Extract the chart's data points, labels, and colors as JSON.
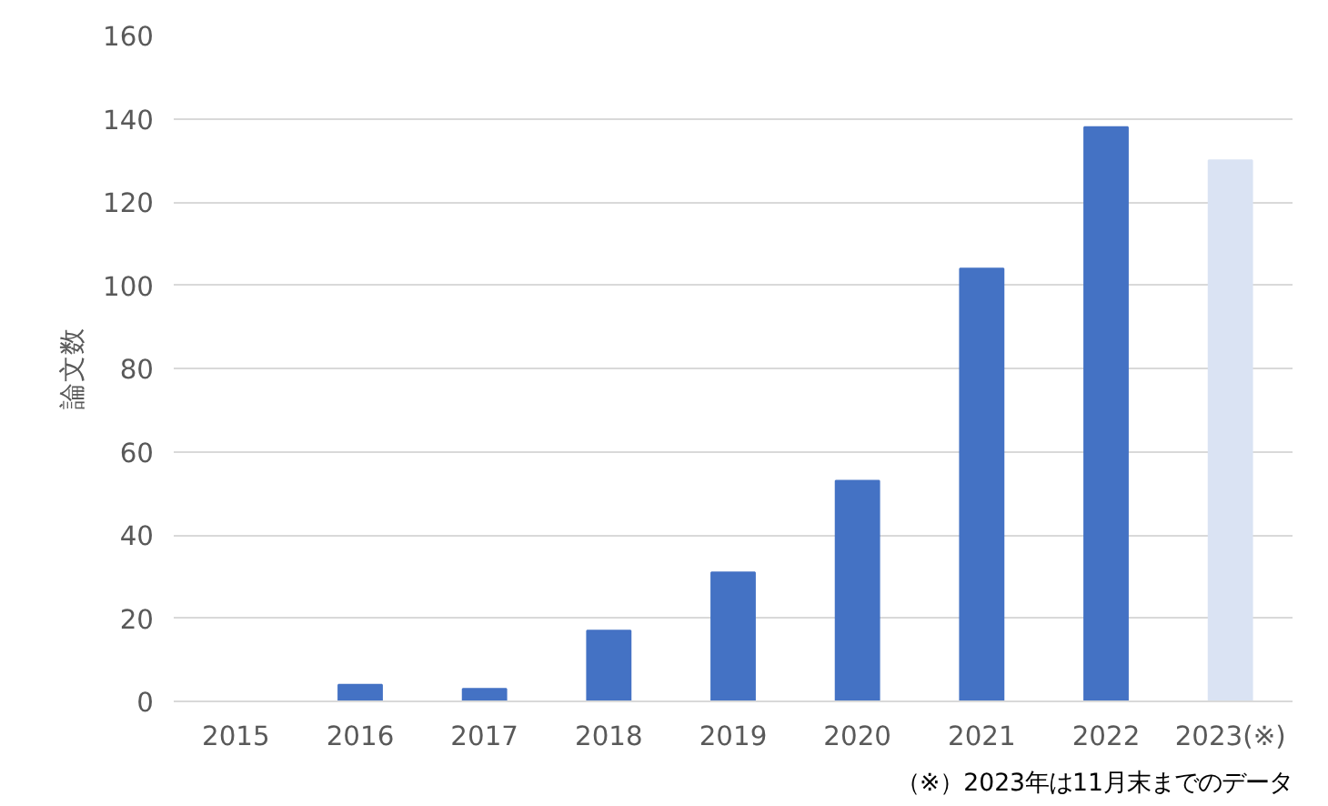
{
  "chart_data": {
    "type": "bar",
    "ylabel": "論文数",
    "categories": [
      "2015",
      "2016",
      "2017",
      "2018",
      "2019",
      "2020",
      "2021",
      "2022",
      "2023(※)"
    ],
    "values": [
      0,
      4,
      3,
      17,
      31,
      53,
      104,
      138,
      130
    ],
    "colors": [
      "#4472c4",
      "#4472c4",
      "#4472c4",
      "#4472c4",
      "#4472c4",
      "#4472c4",
      "#4472c4",
      "#4472c4",
      "#dae3f3"
    ],
    "ylim": [
      0,
      160
    ],
    "yticks": [
      0,
      20,
      40,
      60,
      80,
      100,
      120,
      140,
      160
    ],
    "grid": "y",
    "annotations": [
      "（※）2023年は11月末までのデータ"
    ]
  }
}
